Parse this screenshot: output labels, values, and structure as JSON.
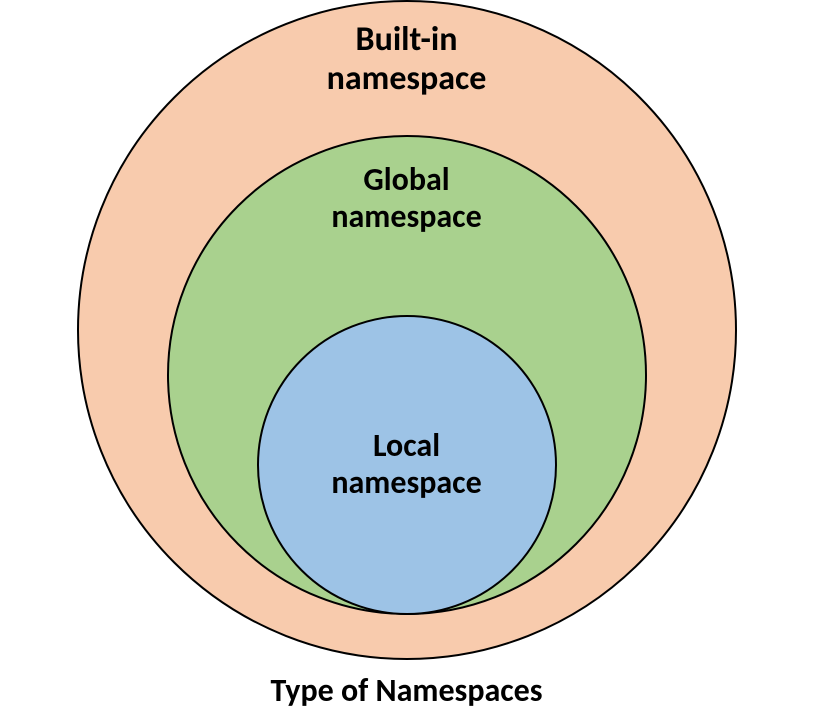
{
  "diagram": {
    "type": "venn-nested",
    "caption": "Type of Namespaces",
    "caption_fontsize": 32,
    "circles": {
      "outer": {
        "label": "Built-in\nnamespace",
        "fill_color": "#f8cbad",
        "border_color": "#000000",
        "border_width": 2,
        "diameter": 660,
        "label_fontsize": 34
      },
      "middle": {
        "label": "Global\nnamespace",
        "fill_color": "#a9d18e",
        "border_color": "#000000",
        "border_width": 2,
        "diameter": 480,
        "label_fontsize": 32
      },
      "inner": {
        "label": "Local\nnamespace",
        "fill_color": "#9dc3e6",
        "border_color": "#000000",
        "border_width": 2,
        "diameter": 300,
        "label_fontsize": 32
      }
    },
    "background_color": "#ffffff",
    "font_family": "Calibri",
    "font_weight": 700,
    "text_color": "#000000"
  }
}
